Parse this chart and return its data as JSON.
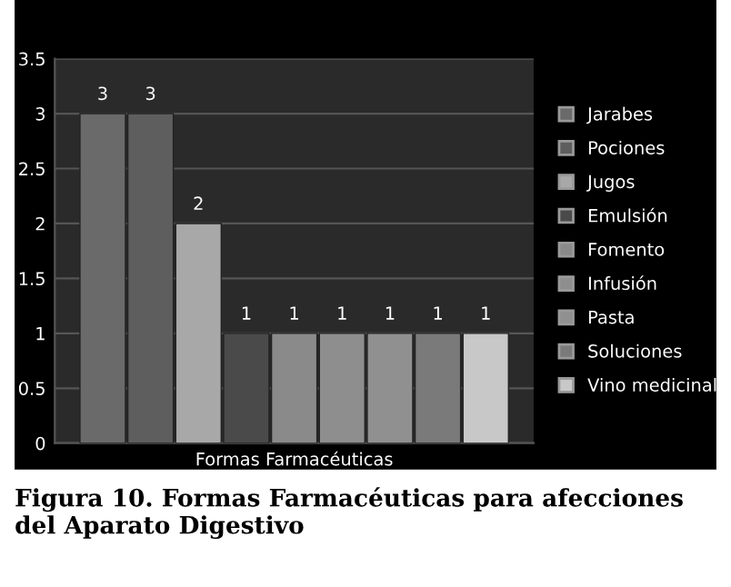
{
  "chart_data": {
    "type": "bar",
    "categories": [
      "Formas Farmacéuticas"
    ],
    "series": [
      {
        "name": "Jarabes",
        "color": "#6a6a6a",
        "values": [
          3
        ]
      },
      {
        "name": "Pociones",
        "color": "#5e5e5e",
        "values": [
          3
        ]
      },
      {
        "name": "Jugos",
        "color": "#a8a8a8",
        "values": [
          2
        ]
      },
      {
        "name": "Emulsión",
        "color": "#4a4a4a",
        "values": [
          1
        ]
      },
      {
        "name": "Fomento",
        "color": "#8a8a8a",
        "values": [
          1
        ]
      },
      {
        "name": "Infusión",
        "color": "#8e8e8e",
        "values": [
          1
        ]
      },
      {
        "name": "Pasta",
        "color": "#909090",
        "values": [
          1
        ]
      },
      {
        "name": "Soluciones",
        "color": "#7a7a7a",
        "values": [
          1
        ]
      },
      {
        "name": "Vino medicinal",
        "color": "#c8c8c8",
        "values": [
          1
        ]
      }
    ],
    "ylim": [
      0,
      3.5
    ],
    "yticks": [
      0,
      0.5,
      1,
      1.5,
      2,
      2.5,
      3,
      3.5
    ],
    "grid": "y",
    "data_labels": true,
    "legend": "right",
    "annotations": [
      "Figura 10. Formas Farmacéuticas para afecciones del Aparato Digestivo"
    ]
  }
}
